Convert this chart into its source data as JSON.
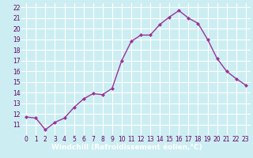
{
  "x": [
    0,
    1,
    2,
    3,
    4,
    5,
    6,
    7,
    8,
    9,
    10,
    11,
    12,
    13,
    14,
    15,
    16,
    17,
    18,
    19,
    20,
    21,
    22,
    23
  ],
  "y": [
    11.7,
    11.6,
    10.5,
    11.2,
    11.6,
    12.6,
    13.4,
    13.9,
    13.8,
    14.4,
    17.0,
    18.8,
    19.4,
    19.4,
    20.4,
    21.1,
    21.7,
    21.0,
    20.5,
    19.0,
    17.2,
    16.0,
    15.3,
    14.7
  ],
  "xlabel": "Windchill (Refroidissement éolien,°C)",
  "ylim": [
    10,
    22.4
  ],
  "xlim": [
    -0.5,
    23.5
  ],
  "yticks": [
    11,
    12,
    13,
    14,
    15,
    16,
    17,
    18,
    19,
    20,
    21,
    22
  ],
  "xticks": [
    0,
    1,
    2,
    3,
    4,
    5,
    6,
    7,
    8,
    9,
    10,
    11,
    12,
    13,
    14,
    15,
    16,
    17,
    18,
    19,
    20,
    21,
    22,
    23
  ],
  "line_color": "#993399",
  "marker": "D",
  "marker_size": 2.0,
  "line_width": 1.0,
  "bg_color": "#cceef2",
  "grid_color": "#ffffff",
  "tick_label_fontsize": 5.5,
  "xlabel_fontsize": 6.5,
  "label_bar_color": "#9900aa",
  "label_text_color": "#ffffff",
  "tick_color": "#660066"
}
